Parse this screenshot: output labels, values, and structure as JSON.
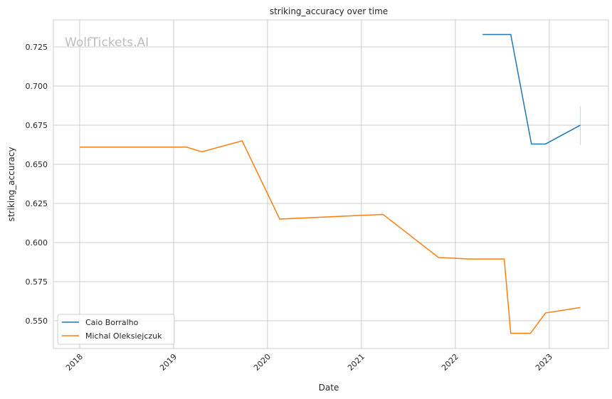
{
  "chart_data": {
    "type": "line",
    "title": "striking_accuracy over time",
    "xlabel": "Date",
    "ylabel": "striking_accuracy",
    "watermark": "WolfTickets.AI",
    "xlim": [
      2017.72,
      2023.63
    ],
    "ylim": [
      0.5323,
      0.7423
    ],
    "xticks": [
      {
        "v": 2018,
        "label": "2018"
      },
      {
        "v": 2019,
        "label": "2019"
      },
      {
        "v": 2020,
        "label": "2020"
      },
      {
        "v": 2021,
        "label": "2021"
      },
      {
        "v": 2022,
        "label": "2022"
      },
      {
        "v": 2023,
        "label": "2023"
      }
    ],
    "yticks": [
      {
        "v": 0.55,
        "label": "0.550"
      },
      {
        "v": 0.575,
        "label": "0.575"
      },
      {
        "v": 0.6,
        "label": "0.600"
      },
      {
        "v": 0.625,
        "label": "0.625"
      },
      {
        "v": 0.65,
        "label": "0.650"
      },
      {
        "v": 0.675,
        "label": "0.675"
      },
      {
        "v": 0.7,
        "label": "0.700"
      },
      {
        "v": 0.725,
        "label": "0.725"
      }
    ],
    "grid": true,
    "legend_position": "bottom-left",
    "series": [
      {
        "name": "Caio Borralho",
        "color": "#1f77b4",
        "x": [
          2022.29,
          2022.59,
          2022.81,
          2022.96,
          2023.33
        ],
        "y": [
          0.733,
          0.733,
          0.663,
          0.663,
          0.675
        ],
        "error_bar": {
          "x": 2023.33,
          "low": 0.6625,
          "high": 0.687
        }
      },
      {
        "name": "Michal Oleksiejczuk",
        "color": "#ff7f0e",
        "x": [
          2018.0,
          2019.14,
          2019.3,
          2019.73,
          2020.13,
          2021.23,
          2021.82,
          2022.15,
          2022.52,
          2022.59,
          2022.8,
          2022.96,
          2023.33
        ],
        "y": [
          0.661,
          0.661,
          0.658,
          0.665,
          0.615,
          0.618,
          0.5905,
          0.5895,
          0.5895,
          0.542,
          0.542,
          0.555,
          0.5585
        ]
      }
    ]
  }
}
